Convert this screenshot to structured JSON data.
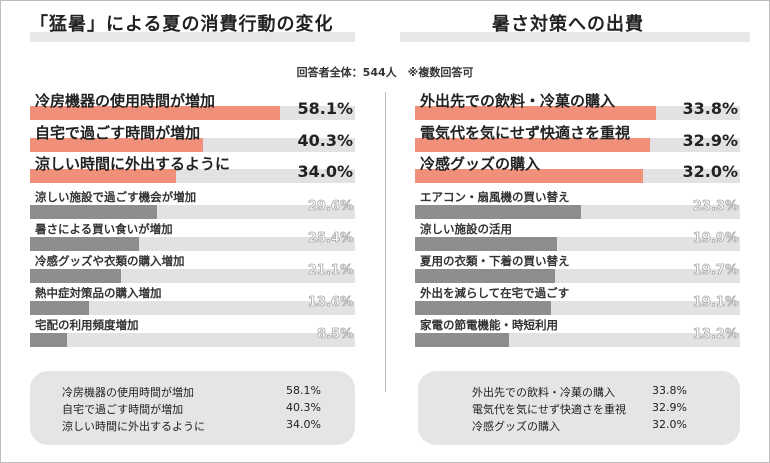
{
  "left_title": "「猛暑」による夏の消費行動の変化",
  "right_title": "暑さ対策への出費",
  "respondents_note": "回答者全体：544人　※複数回答可",
  "colors": {
    "highlight": "#f0907a",
    "gray": "#8e8e8e",
    "track": "#e3e1e3"
  },
  "chart_data": [
    {
      "type": "bar",
      "title": "「猛暑」による夏の消費行動の変化",
      "categories": [
        "冷房機器の使用時間が増加",
        "自宅で過ごす時間が増加",
        "涼しい時間に外出するように",
        "涼しい施設で過ごす機会が増加",
        "暑さによる買い食いが増加",
        "冷感グッズや衣類の購入増加",
        "熱中症対策品の購入増加",
        "宅配の利用頻度増加"
      ],
      "values": [
        58.1,
        40.3,
        34.0,
        29.6,
        25.4,
        21.1,
        13.6,
        8.5
      ],
      "value_labels": [
        "58.1%",
        "40.3%",
        "34.0%",
        "29.6%",
        "25.4%",
        "21.1%",
        "13.6%",
        "8.5%"
      ],
      "unit": "%"
    },
    {
      "type": "bar",
      "title": "暑さ対策への出費",
      "categories": [
        "外出先での飲料・冷菓の購入",
        "電気代を気にせず快適さを重視",
        "冷感グッズの購入",
        "エアコン・扇風機の買い替え",
        "涼しい施設の活用",
        "夏用の衣類・下着の買い替え",
        "外出を減らして在宅で過ごす",
        "家電の節電機能・時短利用"
      ],
      "values": [
        33.8,
        32.9,
        32.0,
        23.3,
        19.9,
        19.7,
        19.1,
        13.2
      ],
      "value_labels": [
        "33.8%",
        "32.9%",
        "32.0%",
        "23.3%",
        "19.9%",
        "19.7%",
        "19.1%",
        "13.2%"
      ],
      "unit": "%"
    }
  ],
  "summary_left": [
    {
      "label": "冷房機器の使用時間が増加",
      "value": "58.1%"
    },
    {
      "label": "自宅で過ごす時間が増加",
      "value": "40.3%"
    },
    {
      "label": "涼しい時間に外出するように",
      "value": "34.0%"
    }
  ],
  "summary_right": [
    {
      "label": "外出先での飲料・冷菓の購入",
      "value": "33.8%"
    },
    {
      "label": "電気代を気にせず快適さを重視",
      "value": "32.9%"
    },
    {
      "label": "冷感グッズの購入",
      "value": "32.0%"
    }
  ]
}
